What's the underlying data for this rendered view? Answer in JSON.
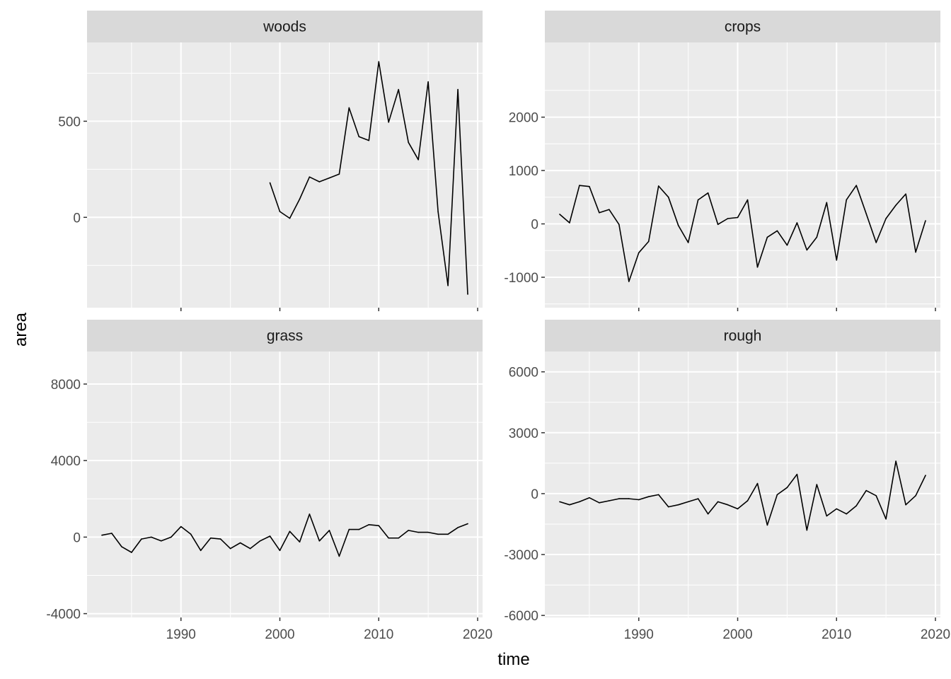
{
  "chart_data": {
    "type": "line",
    "xlabel": "time",
    "ylabel": "area",
    "x_ticks": [
      1990,
      2000,
      2010,
      2020
    ],
    "xlim": [
      1980.5,
      2020.5
    ],
    "colors": {
      "panel_bg": "#ebebeb",
      "strip_bg": "#d9d9d9",
      "grid": "#ffffff",
      "line": "#000000"
    },
    "panels": [
      {
        "name": "woods",
        "ylim": [
          -470,
          910
        ],
        "y_ticks": [
          0,
          500
        ],
        "x": [
          1999,
          2000,
          2001,
          2002,
          2003,
          2004,
          2005,
          2006,
          2007,
          2008,
          2009,
          2010,
          2011,
          2012,
          2013,
          2014,
          2015,
          2016,
          2017,
          2018,
          2019
        ],
        "values": [
          180,
          30,
          -5,
          95,
          210,
          185,
          205,
          225,
          570,
          420,
          400,
          810,
          495,
          665,
          390,
          300,
          705,
          30,
          -355,
          665,
          -400
        ]
      },
      {
        "name": "crops",
        "ylim": [
          -1570,
          3400
        ],
        "y_ticks": [
          -1000,
          0,
          1000,
          2000
        ],
        "x": [
          1982,
          1983,
          1984,
          1985,
          1986,
          1987,
          1988,
          1989,
          1990,
          1991,
          1992,
          1993,
          1994,
          1995,
          1996,
          1997,
          1998,
          1999,
          2000,
          2001,
          2002,
          2003,
          2004,
          2005,
          2006,
          2007,
          2008,
          2009,
          2010,
          2011,
          2012,
          2013,
          2014,
          2015,
          2016,
          2017,
          2018,
          2019
        ],
        "values": [
          180,
          20,
          720,
          700,
          210,
          270,
          -10,
          -1080,
          -540,
          -330,
          710,
          500,
          -30,
          -350,
          450,
          580,
          -10,
          100,
          120,
          450,
          -810,
          -250,
          -130,
          -400,
          20,
          -490,
          -250,
          400,
          -680,
          450,
          720,
          190,
          -350,
          100,
          350,
          560,
          -530,
          60
        ]
      },
      {
        "name": "grass",
        "ylim": [
          -4200,
          9700
        ],
        "y_ticks": [
          -4000,
          0,
          4000,
          8000
        ],
        "x": [
          1982,
          1983,
          1984,
          1985,
          1986,
          1987,
          1988,
          1989,
          1990,
          1991,
          1992,
          1993,
          1994,
          1995,
          1996,
          1997,
          1998,
          1999,
          2000,
          2001,
          2002,
          2003,
          2004,
          2005,
          2006,
          2007,
          2008,
          2009,
          2010,
          2011,
          2012,
          2013,
          2014,
          2015,
          2016,
          2017,
          2018,
          2019
        ],
        "values": [
          100,
          200,
          -500,
          -800,
          -100,
          0,
          -200,
          0,
          550,
          150,
          -700,
          -50,
          -100,
          -600,
          -300,
          -600,
          -200,
          50,
          -700,
          300,
          -250,
          1200,
          -200,
          350,
          -1000,
          400,
          400,
          650,
          600,
          -50,
          -50,
          350,
          250,
          250,
          150,
          150,
          500,
          700
        ]
      },
      {
        "name": "rough",
        "ylim": [
          -6100,
          7000
        ],
        "y_ticks": [
          -6000,
          -3000,
          0,
          3000,
          6000
        ],
        "x": [
          1982,
          1983,
          1984,
          1985,
          1986,
          1987,
          1988,
          1989,
          1990,
          1991,
          1992,
          1993,
          1994,
          1995,
          1996,
          1997,
          1998,
          1999,
          2000,
          2001,
          2002,
          2003,
          2004,
          2005,
          2006,
          2007,
          2008,
          2009,
          2010,
          2011,
          2012,
          2013,
          2014,
          2015,
          2016,
          2017,
          2018,
          2019
        ],
        "values": [
          -400,
          -550,
          -400,
          -200,
          -450,
          -350,
          -250,
          -250,
          -300,
          -150,
          -50,
          -650,
          -550,
          -400,
          -250,
          -1000,
          -400,
          -550,
          -750,
          -350,
          500,
          -1550,
          -50,
          300,
          950,
          -1800,
          450,
          -1100,
          -750,
          -1000,
          -600,
          150,
          -100,
          -1250,
          1600,
          -550,
          -100,
          900
        ]
      }
    ]
  }
}
